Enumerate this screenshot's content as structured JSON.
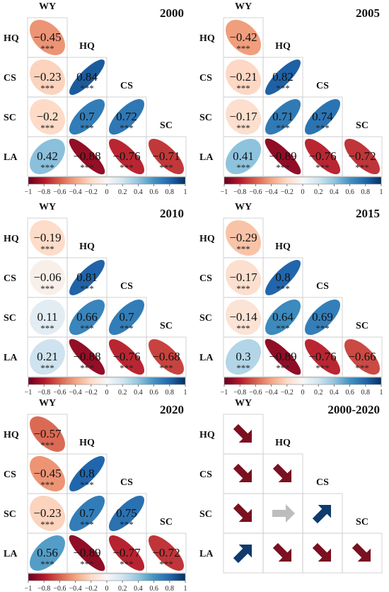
{
  "variables": [
    "WY",
    "HQ",
    "CS",
    "SC",
    "LA"
  ],
  "colorbar": {
    "tick_labels": [
      "−1",
      "−0.8",
      "−0.6",
      "−0.4",
      "−0.2",
      "0",
      "0.2",
      "0.4",
      "0.6",
      "0.8",
      "1"
    ],
    "range": [
      -1,
      1
    ],
    "colors": [
      "#67001f",
      "#b2182b",
      "#d6604d",
      "#f4a582",
      "#fddbc7",
      "#f7f7f7",
      "#d1e5f0",
      "#92c5de",
      "#4393c3",
      "#2166ac",
      "#053061"
    ]
  },
  "significance_label": "***",
  "chart_data": [
    {
      "type": "heatmap",
      "title": "2000",
      "variables": [
        "WY",
        "HQ",
        "CS",
        "SC",
        "LA"
      ],
      "cells": [
        {
          "row": "HQ",
          "col": "WY",
          "value": -0.45,
          "label": "−0.45",
          "sig": "***"
        },
        {
          "row": "CS",
          "col": "WY",
          "value": -0.23,
          "label": "−0.23",
          "sig": "***"
        },
        {
          "row": "CS",
          "col": "HQ",
          "value": 0.84,
          "label": "0.84",
          "sig": "***"
        },
        {
          "row": "SC",
          "col": "WY",
          "value": -0.2,
          "label": "−0.2",
          "sig": "***"
        },
        {
          "row": "SC",
          "col": "HQ",
          "value": 0.7,
          "label": "0.7",
          "sig": "***"
        },
        {
          "row": "SC",
          "col": "CS",
          "value": 0.72,
          "label": "0.72",
          "sig": "***"
        },
        {
          "row": "LA",
          "col": "WY",
          "value": 0.42,
          "label": "0.42",
          "sig": "***"
        },
        {
          "row": "LA",
          "col": "HQ",
          "value": -0.88,
          "label": "−0.88",
          "sig": "***"
        },
        {
          "row": "LA",
          "col": "CS",
          "value": -0.76,
          "label": "−0.76",
          "sig": "***"
        },
        {
          "row": "LA",
          "col": "SC",
          "value": -0.71,
          "label": "−0.71",
          "sig": "***"
        }
      ]
    },
    {
      "type": "heatmap",
      "title": "2005",
      "variables": [
        "WY",
        "HQ",
        "CS",
        "SC",
        "LA"
      ],
      "cells": [
        {
          "row": "HQ",
          "col": "WY",
          "value": -0.42,
          "label": "−0.42",
          "sig": "***"
        },
        {
          "row": "CS",
          "col": "WY",
          "value": -0.21,
          "label": "−0.21",
          "sig": "***"
        },
        {
          "row": "CS",
          "col": "HQ",
          "value": 0.82,
          "label": "0.82",
          "sig": "***"
        },
        {
          "row": "SC",
          "col": "WY",
          "value": -0.17,
          "label": "−0.17",
          "sig": "***"
        },
        {
          "row": "SC",
          "col": "HQ",
          "value": 0.71,
          "label": "0.71",
          "sig": "***"
        },
        {
          "row": "SC",
          "col": "CS",
          "value": 0.74,
          "label": "0.74",
          "sig": "***"
        },
        {
          "row": "LA",
          "col": "WY",
          "value": 0.41,
          "label": "0.41",
          "sig": "***"
        },
        {
          "row": "LA",
          "col": "HQ",
          "value": -0.89,
          "label": "−0.89",
          "sig": "***"
        },
        {
          "row": "LA",
          "col": "CS",
          "value": -0.76,
          "label": "−0.76",
          "sig": "***"
        },
        {
          "row": "LA",
          "col": "SC",
          "value": -0.72,
          "label": "−0.72",
          "sig": "***"
        }
      ]
    },
    {
      "type": "heatmap",
      "title": "2010",
      "variables": [
        "WY",
        "HQ",
        "CS",
        "SC",
        "LA"
      ],
      "cells": [
        {
          "row": "HQ",
          "col": "WY",
          "value": -0.19,
          "label": "−0.19",
          "sig": "***"
        },
        {
          "row": "CS",
          "col": "WY",
          "value": -0.06,
          "label": "−0.06",
          "sig": "***"
        },
        {
          "row": "CS",
          "col": "HQ",
          "value": 0.81,
          "label": "0.81",
          "sig": "***"
        },
        {
          "row": "SC",
          "col": "WY",
          "value": 0.11,
          "label": "0.11",
          "sig": "***"
        },
        {
          "row": "SC",
          "col": "HQ",
          "value": 0.66,
          "label": "0.66",
          "sig": "***"
        },
        {
          "row": "SC",
          "col": "CS",
          "value": 0.7,
          "label": "0.7",
          "sig": "***"
        },
        {
          "row": "LA",
          "col": "WY",
          "value": 0.21,
          "label": "0.21",
          "sig": "***"
        },
        {
          "row": "LA",
          "col": "HQ",
          "value": -0.88,
          "label": "−0.88",
          "sig": "***"
        },
        {
          "row": "LA",
          "col": "CS",
          "value": -0.76,
          "label": "−0.76",
          "sig": "***"
        },
        {
          "row": "LA",
          "col": "SC",
          "value": -0.68,
          "label": "−0.68",
          "sig": "***"
        }
      ]
    },
    {
      "type": "heatmap",
      "title": "2015",
      "variables": [
        "WY",
        "HQ",
        "CS",
        "SC",
        "LA"
      ],
      "cells": [
        {
          "row": "HQ",
          "col": "WY",
          "value": -0.29,
          "label": "−0.29",
          "sig": "***"
        },
        {
          "row": "CS",
          "col": "WY",
          "value": -0.17,
          "label": "−0.17",
          "sig": "***"
        },
        {
          "row": "CS",
          "col": "HQ",
          "value": 0.8,
          "label": "0.8",
          "sig": "***"
        },
        {
          "row": "SC",
          "col": "WY",
          "value": -0.14,
          "label": "−0.14",
          "sig": "***"
        },
        {
          "row": "SC",
          "col": "HQ",
          "value": 0.64,
          "label": "0.64",
          "sig": "***"
        },
        {
          "row": "SC",
          "col": "CS",
          "value": 0.69,
          "label": "0.69",
          "sig": "***"
        },
        {
          "row": "LA",
          "col": "WY",
          "value": 0.3,
          "label": "0.3",
          "sig": "***"
        },
        {
          "row": "LA",
          "col": "HQ",
          "value": -0.89,
          "label": "−0.89",
          "sig": "***"
        },
        {
          "row": "LA",
          "col": "CS",
          "value": -0.76,
          "label": "−0.76",
          "sig": "***"
        },
        {
          "row": "LA",
          "col": "SC",
          "value": -0.66,
          "label": "−0.66",
          "sig": "***"
        }
      ]
    },
    {
      "type": "heatmap",
      "title": "2020",
      "variables": [
        "WY",
        "HQ",
        "CS",
        "SC",
        "LA"
      ],
      "cells": [
        {
          "row": "HQ",
          "col": "WY",
          "value": -0.57,
          "label": "−0.57",
          "sig": "***"
        },
        {
          "row": "CS",
          "col": "WY",
          "value": -0.45,
          "label": "−0.45",
          "sig": "***"
        },
        {
          "row": "CS",
          "col": "HQ",
          "value": 0.8,
          "label": "0.8",
          "sig": "***"
        },
        {
          "row": "SC",
          "col": "WY",
          "value": -0.23,
          "label": "−0.23",
          "sig": "***"
        },
        {
          "row": "SC",
          "col": "HQ",
          "value": 0.7,
          "label": "0.7",
          "sig": "***"
        },
        {
          "row": "SC",
          "col": "CS",
          "value": 0.75,
          "label": "0.75",
          "sig": "***"
        },
        {
          "row": "LA",
          "col": "WY",
          "value": 0.56,
          "label": "0.56",
          "sig": "***"
        },
        {
          "row": "LA",
          "col": "HQ",
          "value": -0.89,
          "label": "−0.89",
          "sig": "***"
        },
        {
          "row": "LA",
          "col": "CS",
          "value": -0.77,
          "label": "−0.77",
          "sig": "***"
        },
        {
          "row": "LA",
          "col": "SC",
          "value": -0.72,
          "label": "−0.72",
          "sig": "***"
        }
      ]
    },
    {
      "type": "table",
      "title": "2000-2020",
      "variables": [
        "WY",
        "HQ",
        "CS",
        "SC",
        "LA"
      ],
      "trend_colors": {
        "down": "#7a1020",
        "up": "#0f3a6e",
        "flat": "#bdbdbd"
      },
      "cells": [
        {
          "row": "HQ",
          "col": "WY",
          "trend": "down"
        },
        {
          "row": "CS",
          "col": "WY",
          "trend": "down"
        },
        {
          "row": "CS",
          "col": "HQ",
          "trend": "down"
        },
        {
          "row": "SC",
          "col": "WY",
          "trend": "down"
        },
        {
          "row": "SC",
          "col": "HQ",
          "trend": "flat"
        },
        {
          "row": "SC",
          "col": "CS",
          "trend": "up"
        },
        {
          "row": "LA",
          "col": "WY",
          "trend": "up"
        },
        {
          "row": "LA",
          "col": "HQ",
          "trend": "down"
        },
        {
          "row": "LA",
          "col": "CS",
          "trend": "down"
        },
        {
          "row": "LA",
          "col": "SC",
          "trend": "down"
        }
      ]
    }
  ]
}
